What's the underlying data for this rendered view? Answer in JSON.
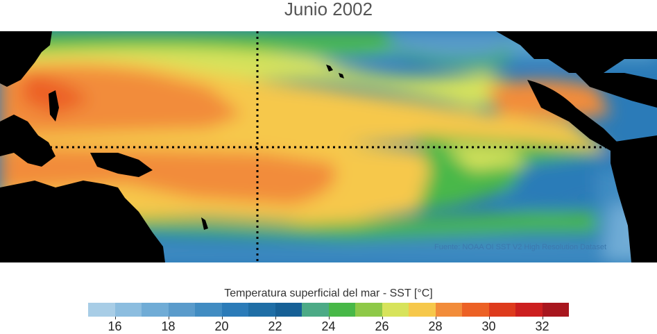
{
  "title": "Junio 2002",
  "source": "Fuente: NOAA OI SST V2 High Resolution Dataset",
  "colorbar": {
    "label": "Temperatura superficial del mar - SST  [°C]",
    "range": [
      15,
      33
    ],
    "step": 1,
    "ticks": [
      "16",
      "18",
      "20",
      "22",
      "24",
      "26",
      "28",
      "30",
      "32"
    ],
    "colors": [
      "#a8cde6",
      "#8cbddf",
      "#70acd6",
      "#5a9bcb",
      "#418cc2",
      "#2b7bb8",
      "#1f6ea6",
      "#166096",
      "#4caa86",
      "#48b848",
      "#8ec948",
      "#d7e35b",
      "#f6c84b",
      "#f28c3a",
      "#ec6125",
      "#de3b1d",
      "#cc1f1f",
      "#a8161e"
    ]
  },
  "map": {
    "region": "Pacific Ocean",
    "guides": [
      "equator (0°)",
      "180° meridian"
    ],
    "land_color": "#000000"
  }
}
